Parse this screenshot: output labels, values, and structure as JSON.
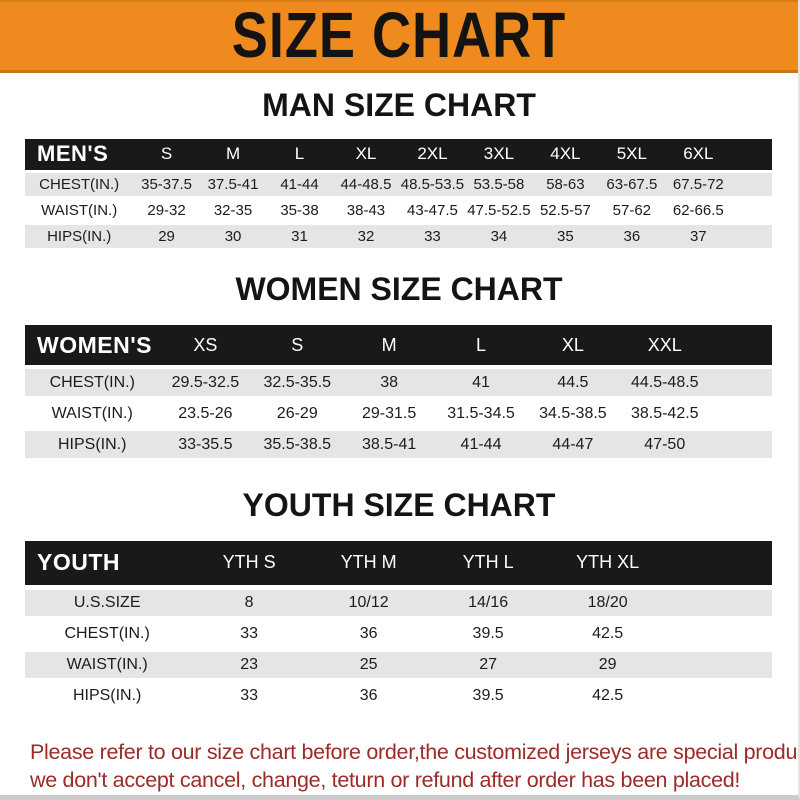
{
  "banner": {
    "title": "SIZE CHART",
    "bg_color": "#ee8a1e",
    "text_color": "#131313"
  },
  "colors": {
    "table_header_bg": "#191919",
    "row_gray": "#e5e5e5",
    "row_white": "#ffffff",
    "footer_red": "#9c2b28"
  },
  "sections": [
    {
      "heading": "MAN SIZE CHART",
      "table": {
        "header_label": "MEN'S",
        "columns": [
          "S",
          "M",
          "L",
          "XL",
          "2XL",
          "3XL",
          "4XL",
          "5XL",
          "6XL"
        ],
        "rows": [
          {
            "label": "CHEST(IN.)",
            "values": [
              "35-37.5",
              "37.5-41",
              "41-44",
              "44-48.5",
              "48.5-53.5",
              "53.5-58",
              "58-63",
              "63-67.5",
              "67.5-72"
            ]
          },
          {
            "label": "WAIST(IN.)",
            "values": [
              "29-32",
              "32-35",
              "35-38",
              "38-43",
              "43-47.5",
              "47.5-52.5",
              "52.5-57",
              "57-62",
              "62-66.5"
            ]
          },
          {
            "label": "HIPS(IN.)",
            "values": [
              "29",
              "30",
              "31",
              "32",
              "33",
              "34",
              "35",
              "36",
              "37"
            ]
          }
        ]
      }
    },
    {
      "heading": "WOMEN SIZE CHART",
      "table": {
        "header_label": "WOMEN'S",
        "columns": [
          "XS",
          "S",
          "M",
          "L",
          "XL",
          "XXL"
        ],
        "rows": [
          {
            "label": "CHEST(IN.)",
            "values": [
              "29.5-32.5",
              "32.5-35.5",
              "38",
              "41",
              "44.5",
              "44.5-48.5"
            ]
          },
          {
            "label": "WAIST(IN.)",
            "values": [
              "23.5-26",
              "26-29",
              "29-31.5",
              "31.5-34.5",
              "34.5-38.5",
              "38.5-42.5"
            ]
          },
          {
            "label": "HIPS(IN.)",
            "values": [
              "33-35.5",
              "35.5-38.5",
              "38.5-41",
              "41-44",
              "44-47",
              "47-50"
            ]
          }
        ]
      }
    },
    {
      "heading": "YOUTH SIZE CHART",
      "table": {
        "header_label": "YOUTH",
        "columns": [
          "YTH S",
          "YTH M",
          "YTH L",
          "YTH XL"
        ],
        "rows": [
          {
            "label": "U.S.SIZE",
            "values": [
              "8",
              "10/12",
              "14/16",
              "18/20"
            ]
          },
          {
            "label": "CHEST(IN.)",
            "values": [
              "33",
              "36",
              "39.5",
              "42.5"
            ]
          },
          {
            "label": "WAIST(IN.)",
            "values": [
              "23",
              "25",
              "27",
              "29"
            ]
          },
          {
            "label": "HIPS(IN.)",
            "values": [
              "33",
              "36",
              "39.5",
              "42.5"
            ]
          }
        ]
      }
    }
  ],
  "footer": {
    "line1": "Please refer to our size chart before order,the customized jerseys are special products,",
    "line2": "we don't accept cancel, change, teturn or refund after order has been placed!"
  }
}
